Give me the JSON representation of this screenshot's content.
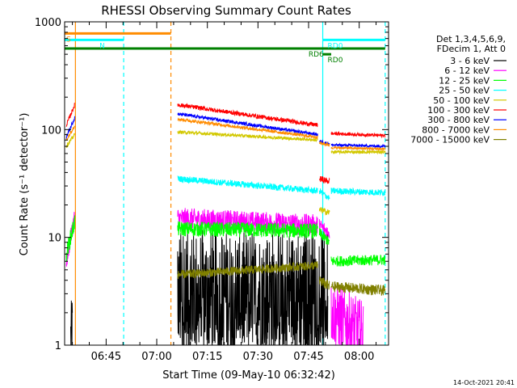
{
  "chart_data": {
    "type": "line",
    "title": "RHESSI Observing Summary Count Rates",
    "xlabel": "Start Time (09-May-10 06:32:42)",
    "ylabel": "Count Rate (s⁻¹ detector⁻¹)",
    "yscale": "log",
    "ylim": [
      1,
      1000
    ],
    "xlim_minutes": [
      0,
      96
    ],
    "y_tick_labels": [
      "1",
      "10",
      "100",
      "1000"
    ],
    "x_ticks": [
      {
        "m": 12.3,
        "label": "06:45"
      },
      {
        "m": 27.3,
        "label": "07:00"
      },
      {
        "m": 42.3,
        "label": "07:15"
      },
      {
        "m": 57.3,
        "label": "07:30"
      },
      {
        "m": 72.3,
        "label": "07:45"
      },
      {
        "m": 87.3,
        "label": "08:00"
      }
    ],
    "legend_header": [
      "Det 1,3,4,5,6,9,",
      "FDecim 1, Att 0"
    ],
    "series": [
      {
        "name": "3 - 6 keV",
        "color": "#000000",
        "segments": [
          {
            "t0": 1.8,
            "t1": 2.3,
            "y0": 1.2,
            "y1": 1.5,
            "noise": 0.3
          },
          {
            "t0": 33.5,
            "t1": 78.0,
            "y0": 3.0,
            "y1": 3.0,
            "noise": 0.6,
            "dip": 1.0
          }
        ]
      },
      {
        "name": "6 - 12 keV",
        "color": "#ff00ff",
        "segments": [
          {
            "t0": 0.5,
            "t1": 3.0,
            "y0": 6.0,
            "y1": 16.0,
            "noise": 0.08
          },
          {
            "t0": 33.5,
            "t1": 75.0,
            "y0": 15.0,
            "y1": 13.0,
            "noise": 0.1
          },
          {
            "t0": 75.5,
            "t1": 78.5,
            "y0": 13.0,
            "y1": 11.0,
            "noise": 0.06
          },
          {
            "t0": 79.0,
            "t1": 88.5,
            "y0": 2.0,
            "y1": 1.3,
            "noise": 0.3
          }
        ]
      },
      {
        "name": "12 - 25 keV",
        "color": "#00ff00",
        "segments": [
          {
            "t0": 0.5,
            "t1": 3.0,
            "y0": 7.0,
            "y1": 14.0,
            "noise": 0.08
          },
          {
            "t0": 33.5,
            "t1": 75.0,
            "y0": 12.0,
            "y1": 11.5,
            "noise": 0.07
          },
          {
            "t0": 75.5,
            "t1": 78.5,
            "y0": 11.0,
            "y1": 9.0,
            "noise": 0.05
          },
          {
            "t0": 79.0,
            "t1": 95.0,
            "y0": 6.0,
            "y1": 6.2,
            "noise": 0.05
          }
        ]
      },
      {
        "name": "25 - 50 keV",
        "color": "#00ffff",
        "segments": [
          {
            "t0": 33.5,
            "t1": 75.0,
            "y0": 35.0,
            "y1": 27.0,
            "noise": 0.03
          },
          {
            "t0": 75.5,
            "t1": 78.5,
            "y0": 27.0,
            "y1": 23.0,
            "noise": 0.03
          },
          {
            "t0": 79.0,
            "t1": 95.0,
            "y0": 27.0,
            "y1": 26.0,
            "noise": 0.03
          }
        ]
      },
      {
        "name": "50 - 100 keV",
        "color": "#d2c800",
        "segments": [
          {
            "t0": 0.5,
            "t1": 3.0,
            "y0": 70.0,
            "y1": 90.0,
            "noise": 0.02
          },
          {
            "t0": 33.5,
            "t1": 75.0,
            "y0": 95.0,
            "y1": 80.0,
            "noise": 0.015
          },
          {
            "t0": 75.5,
            "t1": 78.5,
            "y0": 18.0,
            "y1": 17.0,
            "noise": 0.03
          },
          {
            "t0": 79.0,
            "t1": 95.0,
            "y0": 62.0,
            "y1": 62.0,
            "noise": 0.015
          }
        ]
      },
      {
        "name": "100 - 300 keV",
        "color": "#ff0000",
        "segments": [
          {
            "t0": 0.5,
            "t1": 3.0,
            "y0": 110.0,
            "y1": 170.0,
            "noise": 0.02
          },
          {
            "t0": 33.5,
            "t1": 75.0,
            "y0": 170.0,
            "y1": 110.0,
            "noise": 0.02
          },
          {
            "t0": 75.5,
            "t1": 78.5,
            "y0": 35.0,
            "y1": 33.0,
            "noise": 0.03
          },
          {
            "t0": 79.0,
            "t1": 95.0,
            "y0": 92.0,
            "y1": 88.0,
            "noise": 0.015
          }
        ]
      },
      {
        "name": "300 - 800 keV",
        "color": "#0000ff",
        "segments": [
          {
            "t0": 0.5,
            "t1": 3.0,
            "y0": 85.0,
            "y1": 130.0,
            "noise": 0.02
          },
          {
            "t0": 33.5,
            "t1": 75.0,
            "y0": 140.0,
            "y1": 90.0,
            "noise": 0.015
          },
          {
            "t0": 75.5,
            "t1": 78.5,
            "y0": 78.0,
            "y1": 74.0,
            "noise": 0.015
          },
          {
            "t0": 79.0,
            "t1": 95.0,
            "y0": 72.0,
            "y1": 70.0,
            "noise": 0.012
          }
        ]
      },
      {
        "name": "800 - 7000 keV",
        "color": "#ff8c00",
        "segments": [
          {
            "t0": 0.5,
            "t1": 3.0,
            "y0": 80.0,
            "y1": 110.0,
            "noise": 0.02
          },
          {
            "t0": 33.5,
            "t1": 75.0,
            "y0": 125.0,
            "y1": 85.0,
            "noise": 0.015
          },
          {
            "t0": 75.5,
            "t1": 78.5,
            "y0": 75.0,
            "y1": 72.0,
            "noise": 0.015
          },
          {
            "t0": 79.0,
            "t1": 95.0,
            "y0": 68.0,
            "y1": 66.0,
            "noise": 0.012
          }
        ]
      },
      {
        "name": "7000 - 15000 keV",
        "color": "#808000",
        "segments": [
          {
            "t0": 33.5,
            "t1": 75.0,
            "y0": 4.5,
            "y1": 5.5,
            "noise": 0.04
          },
          {
            "t0": 75.5,
            "t1": 78.5,
            "y0": 4.0,
            "y1": 3.5,
            "noise": 0.05
          },
          {
            "t0": 79.0,
            "t1": 95.0,
            "y0": 3.5,
            "y1": 3.2,
            "noise": 0.05
          }
        ]
      }
    ],
    "flags": [
      {
        "label": "S",
        "color": "#ff8c00",
        "t0": 0.0,
        "t1": 31.5,
        "y": 780
      },
      {
        "label": "N",
        "color": "#00ffff",
        "t0": 0.0,
        "t1": 17.5,
        "y": 680
      },
      {
        "label": "RD6",
        "color": "#008000",
        "t0": 0.0,
        "t1": 95.0,
        "y": 565
      },
      {
        "label": "RD0",
        "color": "#00ffff",
        "t0": 76.5,
        "t1": 95.0,
        "y": 680
      },
      {
        "label": "RD0",
        "color": "#008000",
        "t0": 76.5,
        "t1": 79.0,
        "y": 500
      }
    ],
    "vlines": [
      {
        "t": 3.2,
        "color": "#ff8c00",
        "style": "solid"
      },
      {
        "t": 17.5,
        "color": "#00ffff",
        "style": "dashed"
      },
      {
        "t": 31.5,
        "color": "#ff8c00",
        "style": "dashed"
      },
      {
        "t": 76.5,
        "color": "#00ffff",
        "style": "solid"
      },
      {
        "t": 95.0,
        "color": "#00ffff",
        "style": "dashed"
      }
    ],
    "footer_date": "14-Oct-2021 20:41",
    "grid": false
  }
}
